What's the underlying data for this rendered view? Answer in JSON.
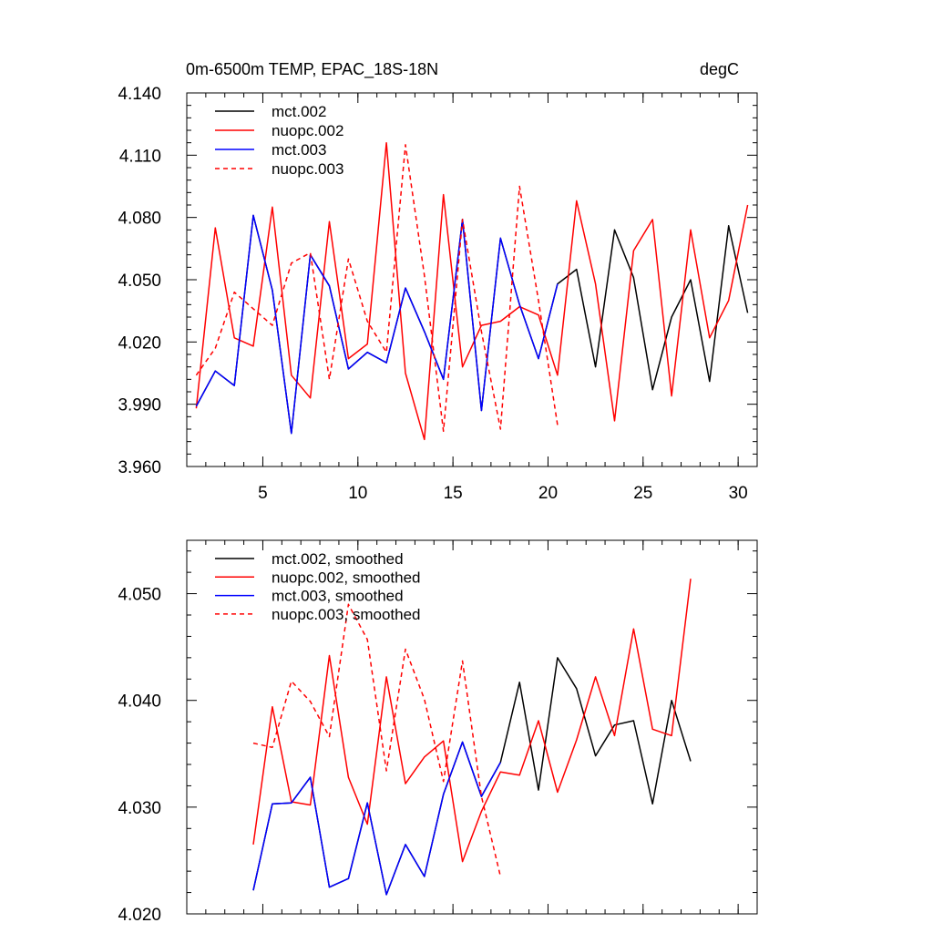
{
  "chart_data": [
    {
      "type": "line",
      "title": "0m-6500m TEMP, EPAC_18S-18N",
      "units": "degC",
      "xlim": [
        1,
        31
      ],
      "ylim": [
        3.96,
        4.14
      ],
      "x_ticks": [
        5,
        10,
        15,
        20,
        25,
        30
      ],
      "x_tick_labels": [
        "5",
        "10",
        "15",
        "20",
        "25",
        "30"
      ],
      "y_ticks": [
        3.96,
        3.99,
        4.02,
        4.05,
        4.08,
        4.11,
        4.14
      ],
      "y_tick_labels": [
        "3.960",
        "3.990",
        "4.020",
        "4.050",
        "4.080",
        "4.110",
        "4.140"
      ],
      "series": [
        {
          "name": "mct.002",
          "color": "#000000",
          "dash": false,
          "x_start": 1.5,
          "values": [
            3.989,
            4.006,
            3.999,
            4.081,
            4.045,
            3.976,
            4.062,
            4.047,
            4.007,
            4.015,
            4.01,
            4.046,
            4.025,
            4.002,
            4.079,
            3.987,
            4.07,
            4.038,
            4.012,
            4.048,
            4.055,
            4.008,
            4.074,
            4.051,
            3.997,
            4.032,
            4.05,
            4.001,
            4.076,
            4.034
          ]
        },
        {
          "name": "nuopc.002",
          "color": "#ff0000",
          "dash": false,
          "x_start": 1.5,
          "values": [
            3.988,
            4.075,
            4.022,
            4.018,
            4.085,
            4.004,
            3.993,
            4.078,
            4.012,
            4.019,
            4.116,
            4.005,
            3.973,
            4.091,
            4.008,
            4.028,
            4.03,
            4.037,
            4.033,
            4.004,
            4.088,
            4.048,
            3.982,
            4.064,
            4.079,
            3.994,
            4.074,
            4.022,
            4.04,
            4.086
          ]
        },
        {
          "name": "mct.003",
          "color": "#0000ff",
          "dash": false,
          "x_start": 1.5,
          "values": [
            3.989,
            4.006,
            3.999,
            4.081,
            4.045,
            3.976,
            4.062,
            4.047,
            4.007,
            4.015,
            4.01,
            4.046,
            4.025,
            4.002,
            4.079,
            3.987,
            4.07,
            4.038,
            4.012,
            4.048
          ]
        },
        {
          "name": "nuopc.003",
          "color": "#ff0000",
          "dash": true,
          "x_start": 1.5,
          "values": [
            4.004,
            4.017,
            4.044,
            4.036,
            4.028,
            4.058,
            4.063,
            4.002,
            4.06,
            4.03,
            4.015,
            4.115,
            4.052,
            3.977,
            4.079,
            4.025,
            3.978,
            4.095,
            4.04,
            3.98
          ]
        }
      ],
      "legend_position": "top-left"
    },
    {
      "type": "line",
      "xlim": [
        1,
        31
      ],
      "ylim": [
        4.02,
        4.055
      ],
      "x_ticks": [
        5,
        10,
        15,
        20,
        25,
        30
      ],
      "y_ticks": [
        4.02,
        4.03,
        4.04,
        4.05
      ],
      "y_tick_labels": [
        "4.020",
        "4.030",
        "4.040",
        "4.050"
      ],
      "series": [
        {
          "name": "mct.002, smoothed",
          "color": "#000000",
          "dash": false,
          "x_start": 4.5,
          "values": [
            4.0222,
            4.0303,
            4.0304,
            4.0328,
            4.0225,
            4.0233,
            4.0304,
            4.0218,
            4.0265,
            4.0235,
            4.0312,
            4.0361,
            4.031,
            4.0342,
            4.0417,
            4.0316,
            4.044,
            4.0411,
            4.0348,
            4.0377,
            4.0381,
            4.0303,
            4.04,
            4.0343
          ]
        },
        {
          "name": "nuopc.002, smoothed",
          "color": "#ff0000",
          "dash": false,
          "x_start": 4.5,
          "values": [
            4.0265,
            4.0394,
            4.0305,
            4.0302,
            4.0442,
            4.0328,
            4.0284,
            4.0422,
            4.0322,
            4.0347,
            4.0362,
            4.0249,
            4.0296,
            4.0333,
            4.033,
            4.0381,
            4.0314,
            4.0363,
            4.0422,
            4.0367,
            4.0467,
            4.0373,
            4.0367,
            4.0514
          ]
        },
        {
          "name": "mct.003, smoothed",
          "color": "#0000ff",
          "dash": false,
          "x_start": 4.5,
          "values": [
            4.0222,
            4.0303,
            4.0304,
            4.0328,
            4.0225,
            4.0233,
            4.0304,
            4.0218,
            4.0265,
            4.0235,
            4.0312,
            4.0361,
            4.031,
            4.0342
          ]
        },
        {
          "name": "nuopc.003, smoothed",
          "color": "#ff0000",
          "dash": true,
          "x_start": 4.5,
          "values": [
            4.036,
            4.0356,
            4.0418,
            4.0399,
            4.0366,
            4.049,
            4.0457,
            4.0334,
            4.0448,
            4.0401,
            4.0324,
            4.0437,
            4.031,
            4.0235
          ]
        }
      ],
      "legend_position": "top-left"
    }
  ]
}
